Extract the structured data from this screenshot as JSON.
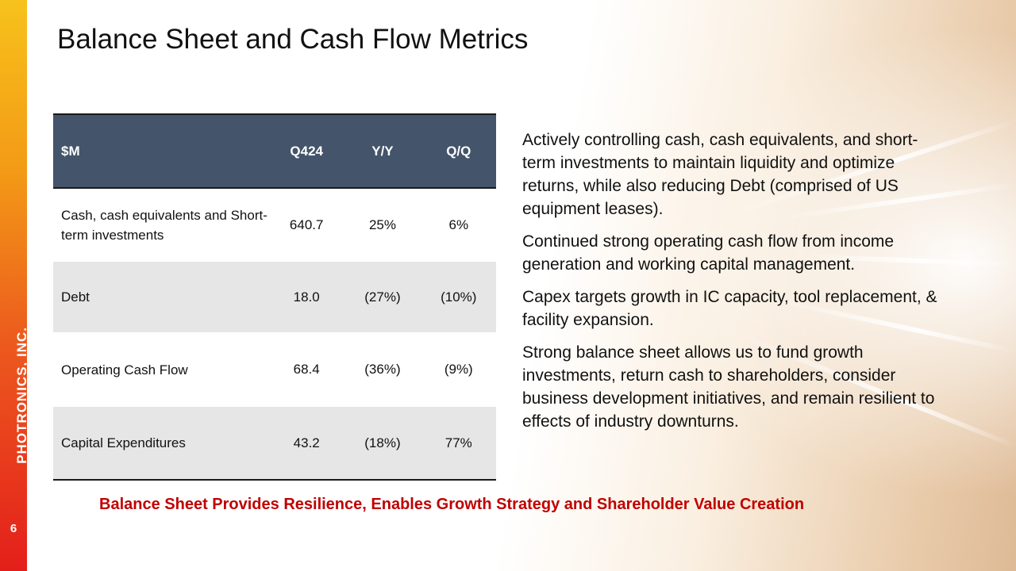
{
  "title": "Balance Sheet and Cash Flow Metrics",
  "company": "PHOTRONICS, INC.",
  "page_number": "6",
  "table": {
    "headers": [
      "$M",
      "Q424",
      "Y/Y",
      "Q/Q"
    ],
    "rows": [
      {
        "label": "Cash, cash equivalents and Short-term investments",
        "q424": "640.7",
        "yy": "25%",
        "qq": "6%"
      },
      {
        "label": "Debt",
        "q424": "18.0",
        "yy": "(27%)",
        "qq": "(10%)"
      },
      {
        "label": "Operating Cash Flow",
        "q424": "68.4",
        "yy": "(36%)",
        "qq": "(9%)"
      },
      {
        "label": "Capital Expenditures",
        "q424": "43.2",
        "yy": "(18%)",
        "qq": "77%"
      }
    ]
  },
  "bullets": [
    "Actively controlling cash, cash equivalents, and short-term investments to maintain liquidity and optimize returns, while also reducing Debt (comprised of US equipment leases).",
    "Continued strong operating cash flow from income generation and working capital management.",
    "Capex targets growth in IC capacity, tool replacement, & facility expansion.",
    "Strong balance sheet allows us to fund growth investments, return cash to shareholders, consider business development initiatives, and remain resilient to effects of industry downturns."
  ],
  "tagline": "Balance Sheet Provides Resilience, Enables Growth Strategy and Shareholder Value Creation",
  "colors": {
    "header_fill": "#44546a",
    "row_alt_fill": "#e7e6e6",
    "tagline": "#c00000",
    "sidebar_top": "#f7c21b",
    "sidebar_bottom": "#e41f1b"
  }
}
